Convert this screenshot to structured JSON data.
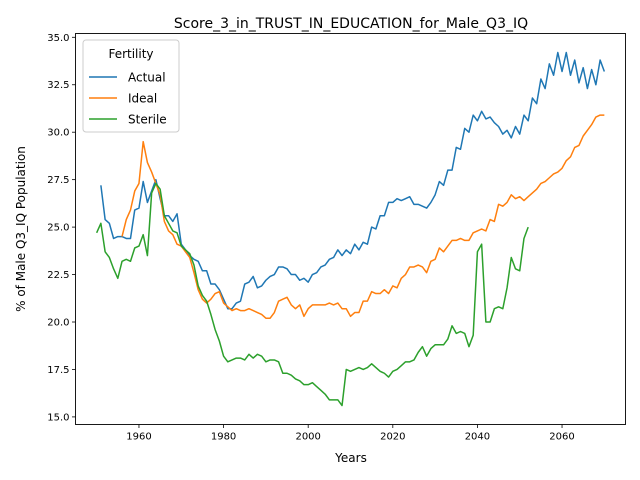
{
  "chart_data": {
    "type": "line",
    "title": "Score_3_in_TRUST_IN_EDUCATION_for_Male_Q3_IQ",
    "xlabel": "Years",
    "ylabel": "% of Male Q3_IQ Population",
    "xlim": [
      1945,
      2075
    ],
    "ylim": [
      14.6,
      35.2
    ],
    "xticks": [
      1960,
      1980,
      2000,
      2020,
      2040,
      2060
    ],
    "yticks": [
      15.0,
      17.5,
      20.0,
      22.5,
      25.0,
      27.5,
      30.0,
      32.5,
      35.0
    ],
    "xtick_labels": [
      "1960",
      "1980",
      "2000",
      "2020",
      "2040",
      "2060"
    ],
    "ytick_labels": [
      "15.0",
      "17.5",
      "20.0",
      "22.5",
      "25.0",
      "27.5",
      "30.0",
      "32.5",
      "35.0"
    ],
    "grid": false,
    "legend": {
      "title": "Fertility",
      "placement": "top-left"
    },
    "series": [
      {
        "name": "Actual",
        "color": "#1f77b4",
        "x": [
          1951,
          1952,
          1953,
          1954,
          1955,
          1956,
          1957,
          1958,
          1959,
          1960,
          1961,
          1962,
          1963,
          1964,
          1965,
          1966,
          1967,
          1968,
          1969,
          1970,
          1971,
          1972,
          1973,
          1974,
          1975,
          1976,
          1977,
          1978,
          1979,
          1980,
          1981,
          1982,
          1983,
          1984,
          1985,
          1986,
          1987,
          1988,
          1989,
          1990,
          1991,
          1992,
          1993,
          1994,
          1995,
          1996,
          1997,
          1998,
          1999,
          2000,
          2001,
          2002,
          2003,
          2004,
          2005,
          2006,
          2007,
          2008,
          2009,
          2010,
          2011,
          2012,
          2013,
          2014,
          2015,
          2016,
          2017,
          2018,
          2019,
          2020,
          2021,
          2022,
          2023,
          2024,
          2025,
          2026,
          2027,
          2028,
          2029,
          2030,
          2031,
          2032,
          2033,
          2034,
          2035,
          2036,
          2037,
          2038,
          2039,
          2040,
          2041,
          2042,
          2043,
          2044,
          2045,
          2046,
          2047,
          2048,
          2049,
          2050,
          2051,
          2052,
          2053,
          2054,
          2055,
          2056,
          2057,
          2058,
          2059,
          2060,
          2061,
          2062,
          2063,
          2064,
          2065,
          2066,
          2067,
          2068,
          2069,
          2070
        ],
        "y": [
          27.2,
          25.4,
          25.2,
          24.4,
          24.5,
          24.5,
          24.4,
          24.4,
          25.9,
          26.0,
          27.4,
          26.3,
          26.9,
          27.5,
          26.5,
          25.6,
          25.6,
          25.3,
          25.7,
          24.1,
          23.8,
          23.5,
          23.3,
          23.2,
          22.7,
          22.7,
          22.0,
          22.0,
          21.7,
          21.2,
          20.7,
          20.7,
          21.0,
          21.1,
          22.0,
          22.1,
          22.4,
          21.8,
          21.9,
          22.2,
          22.4,
          22.5,
          22.9,
          22.9,
          22.8,
          22.5,
          22.5,
          22.2,
          22.3,
          22.1,
          22.5,
          22.6,
          22.9,
          23.0,
          23.3,
          23.4,
          23.8,
          23.5,
          23.8,
          23.6,
          24.1,
          23.8,
          24.2,
          24.1,
          25.0,
          24.9,
          25.6,
          25.6,
          26.3,
          26.3,
          26.5,
          26.4,
          26.5,
          26.6,
          26.2,
          26.2,
          26.1,
          26.0,
          26.3,
          26.7,
          27.4,
          27.2,
          28.0,
          28.0,
          29.2,
          29.1,
          30.2,
          30.0,
          30.9,
          30.6,
          31.1,
          30.7,
          30.8,
          30.5,
          30.3,
          29.9,
          30.1,
          29.7,
          30.3,
          29.9,
          30.9,
          30.6,
          31.8,
          31.5,
          32.8,
          32.3,
          33.6,
          33.0,
          34.2,
          33.2,
          34.2,
          33.0,
          33.8,
          32.6,
          33.4,
          32.3,
          33.3,
          32.5,
          33.8,
          33.2
        ]
      },
      {
        "name": "Ideal",
        "color": "#ff7f0e",
        "x": [
          1956,
          1957,
          1958,
          1959,
          1960,
          1961,
          1962,
          1963,
          1964,
          1965,
          1966,
          1967,
          1968,
          1969,
          1970,
          1971,
          1972,
          1973,
          1974,
          1975,
          1976,
          1977,
          1978,
          1979,
          1980,
          1981,
          1982,
          1983,
          1984,
          1985,
          1986,
          1987,
          1988,
          1989,
          1990,
          1991,
          1992,
          1993,
          1994,
          1995,
          1996,
          1997,
          1998,
          1999,
          2000,
          2001,
          2002,
          2003,
          2004,
          2005,
          2006,
          2007,
          2008,
          2009,
          2010,
          2011,
          2012,
          2013,
          2014,
          2015,
          2016,
          2017,
          2018,
          2019,
          2020,
          2021,
          2022,
          2023,
          2024,
          2025,
          2026,
          2027,
          2028,
          2029,
          2030,
          2031,
          2032,
          2033,
          2034,
          2035,
          2036,
          2037,
          2038,
          2039,
          2040,
          2041,
          2042,
          2043,
          2044,
          2045,
          2046,
          2047,
          2048,
          2049,
          2050,
          2051,
          2052,
          2053,
          2054,
          2055,
          2056,
          2057,
          2058,
          2059,
          2060,
          2061,
          2062,
          2063,
          2064,
          2065,
          2066,
          2067,
          2068,
          2069,
          2070
        ],
        "y": [
          24.5,
          25.4,
          25.9,
          26.9,
          27.3,
          29.5,
          28.4,
          27.9,
          27.3,
          26.7,
          25.3,
          24.8,
          24.6,
          24.1,
          24.0,
          23.7,
          23.4,
          22.6,
          21.7,
          21.2,
          21.0,
          21.2,
          21.5,
          21.6,
          21.0,
          20.8,
          20.6,
          20.7,
          20.6,
          20.6,
          20.7,
          20.6,
          20.5,
          20.4,
          20.2,
          20.2,
          20.5,
          21.1,
          21.2,
          21.3,
          20.9,
          20.7,
          20.9,
          20.3,
          20.7,
          20.9,
          20.9,
          20.9,
          20.9,
          21.0,
          20.9,
          21.0,
          20.7,
          20.7,
          20.3,
          20.5,
          20.5,
          21.1,
          21.1,
          21.6,
          21.5,
          21.5,
          21.7,
          21.5,
          21.9,
          21.8,
          22.3,
          22.5,
          22.9,
          22.9,
          23.0,
          22.9,
          22.6,
          23.2,
          23.3,
          23.9,
          23.7,
          24.0,
          24.3,
          24.3,
          24.4,
          24.3,
          24.3,
          24.7,
          24.8,
          24.9,
          24.8,
          25.4,
          25.3,
          26.2,
          26.1,
          26.3,
          26.7,
          26.5,
          26.6,
          26.4,
          26.6,
          26.8,
          27.0,
          27.3,
          27.4,
          27.6,
          27.8,
          27.9,
          28.1,
          28.5,
          28.7,
          29.2,
          29.3,
          29.8,
          30.1,
          30.4,
          30.8,
          30.9,
          30.9
        ]
      },
      {
        "name": "Sterile",
        "color": "#2ca02c",
        "x": [
          1950,
          1951,
          1952,
          1953,
          1954,
          1955,
          1956,
          1957,
          1958,
          1959,
          1960,
          1961,
          1962,
          1963,
          1964,
          1965,
          1966,
          1967,
          1968,
          1969,
          1970,
          1971,
          1972,
          1973,
          1974,
          1975,
          1976,
          1977,
          1978,
          1979,
          1980,
          1981,
          1982,
          1983,
          1984,
          1985,
          1986,
          1987,
          1988,
          1989,
          1990,
          1991,
          1992,
          1993,
          1994,
          1995,
          1996,
          1997,
          1998,
          1999,
          2000,
          2001,
          2002,
          2003,
          2004,
          2005,
          2006,
          2007,
          2008,
          2009,
          2010,
          2011,
          2012,
          2013,
          2014,
          2015,
          2016,
          2017,
          2018,
          2019,
          2020,
          2021,
          2022,
          2023,
          2024,
          2025,
          2026,
          2027,
          2028,
          2029,
          2030,
          2031,
          2032,
          2033,
          2034,
          2035,
          2036,
          2037,
          2038,
          2039,
          2040,
          2041,
          2042,
          2043,
          2044,
          2045,
          2046,
          2047,
          2048,
          2049,
          2050,
          2051,
          2052
        ],
        "y": [
          24.7,
          25.2,
          23.7,
          23.4,
          22.8,
          22.3,
          23.2,
          23.3,
          23.2,
          23.9,
          24.0,
          24.6,
          23.5,
          26.8,
          27.3,
          27.0,
          25.6,
          25.2,
          24.8,
          24.7,
          24.0,
          23.8,
          23.6,
          23.0,
          21.9,
          21.4,
          21.1,
          20.4,
          19.6,
          19.0,
          18.2,
          17.9,
          18.0,
          18.1,
          18.1,
          18.0,
          18.3,
          18.1,
          18.3,
          18.2,
          17.9,
          18.0,
          18.0,
          17.9,
          17.3,
          17.3,
          17.2,
          17.0,
          16.9,
          16.7,
          16.7,
          16.8,
          16.6,
          16.4,
          16.2,
          15.9,
          15.9,
          15.9,
          15.6,
          17.5,
          17.4,
          17.5,
          17.6,
          17.5,
          17.6,
          17.8,
          17.6,
          17.4,
          17.3,
          17.1,
          17.4,
          17.5,
          17.7,
          17.9,
          17.9,
          18.0,
          18.4,
          18.7,
          18.2,
          18.6,
          18.8,
          18.8,
          18.8,
          19.1,
          19.8,
          19.4,
          19.5,
          19.4,
          18.7,
          19.3,
          23.7,
          24.1,
          20.0,
          20.0,
          20.7,
          20.8,
          20.7,
          21.8,
          23.4,
          22.8,
          22.7,
          24.4,
          25.0
        ]
      }
    ]
  }
}
